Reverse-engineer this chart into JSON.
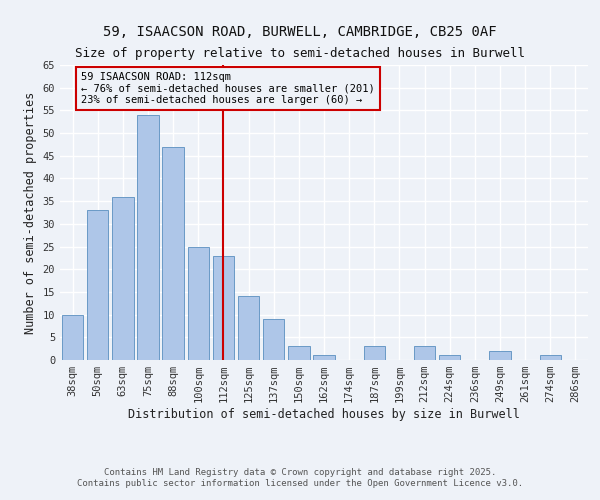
{
  "title_line1": "59, ISAACSON ROAD, BURWELL, CAMBRIDGE, CB25 0AF",
  "title_line2": "Size of property relative to semi-detached houses in Burwell",
  "xlabel": "Distribution of semi-detached houses by size in Burwell",
  "ylabel": "Number of semi-detached properties",
  "categories": [
    "38sqm",
    "50sqm",
    "63sqm",
    "75sqm",
    "88sqm",
    "100sqm",
    "112sqm",
    "125sqm",
    "137sqm",
    "150sqm",
    "162sqm",
    "174sqm",
    "187sqm",
    "199sqm",
    "212sqm",
    "224sqm",
    "236sqm",
    "249sqm",
    "261sqm",
    "274sqm",
    "286sqm"
  ],
  "values": [
    10,
    33,
    36,
    54,
    47,
    25,
    23,
    14,
    9,
    3,
    1,
    0,
    3,
    0,
    3,
    1,
    0,
    2,
    0,
    1,
    0
  ],
  "bar_color": "#aec6e8",
  "bar_edge_color": "#5a8fc0",
  "vline_x_index": 6,
  "vline_color": "#cc0000",
  "annotation_line1": "59 ISAACSON ROAD: 112sqm",
  "annotation_line2": "← 76% of semi-detached houses are smaller (201)",
  "annotation_line3": "23% of semi-detached houses are larger (60) →",
  "annotation_box_color": "#cc0000",
  "ylim": [
    0,
    65
  ],
  "yticks": [
    0,
    5,
    10,
    15,
    20,
    25,
    30,
    35,
    40,
    45,
    50,
    55,
    60,
    65
  ],
  "footer_line1": "Contains HM Land Registry data © Crown copyright and database right 2025.",
  "footer_line2": "Contains public sector information licensed under the Open Government Licence v3.0.",
  "bg_color": "#eef2f8",
  "grid_color": "#ffffff",
  "title_fontsize": 10,
  "subtitle_fontsize": 9,
  "axis_label_fontsize": 8.5,
  "tick_fontsize": 7.5,
  "annotation_fontsize": 7.5,
  "footer_fontsize": 6.5
}
